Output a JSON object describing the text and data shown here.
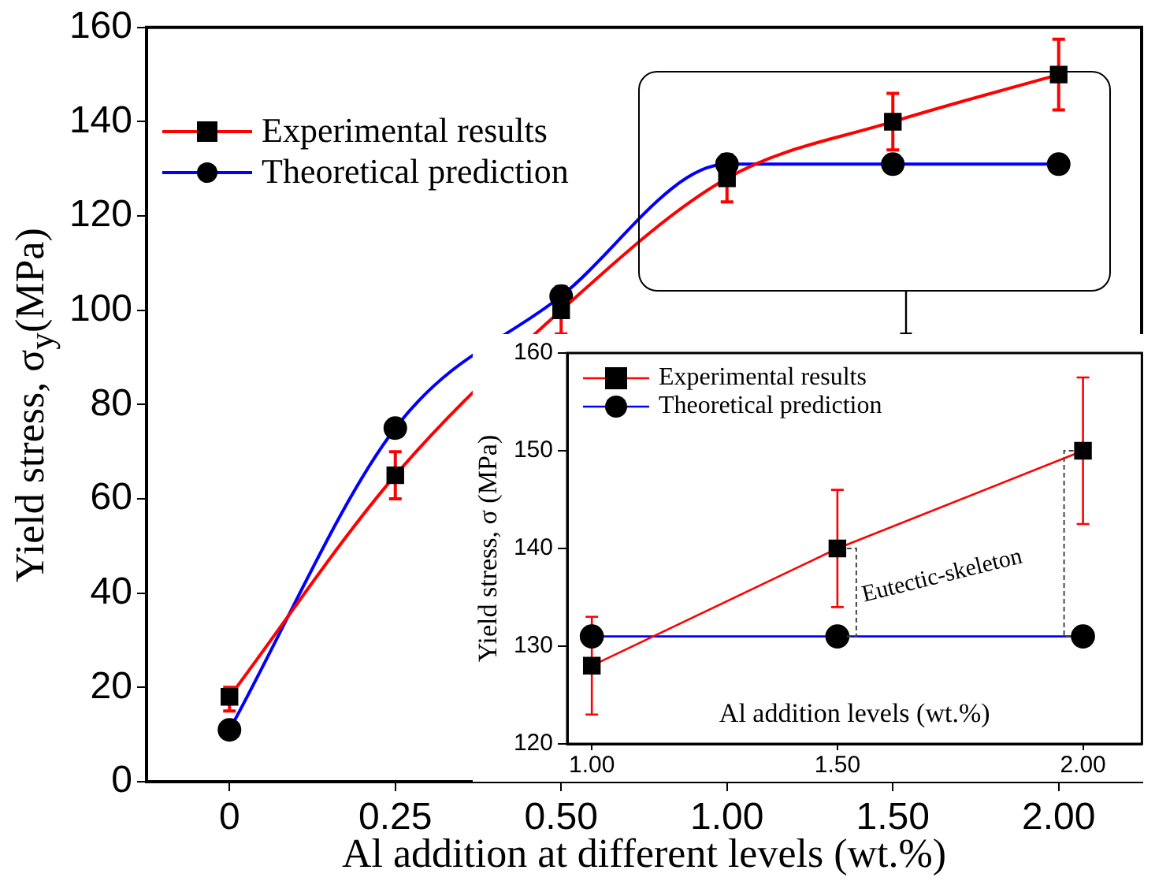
{
  "chart_data": [
    {
      "type": "line",
      "xlabel": "Al addition at different levels (wt.%)",
      "ylabel": "Yield stress, σ$_{y}$(MPa)",
      "categories": [
        "0",
        "0.25",
        "0.50",
        "1.00",
        "1.50",
        "2.00"
      ],
      "ylim": [
        0,
        160
      ],
      "yticks": [
        0,
        20,
        40,
        60,
        80,
        100,
        120,
        140,
        160
      ],
      "series": [
        {
          "name": "Experimental results",
          "color": "#ff0000",
          "marker": "square",
          "values": [
            18,
            65,
            100,
            128,
            140,
            150
          ],
          "errors": [
            [
              15,
              20
            ],
            [
              60,
              70
            ],
            [
              95,
              105
            ],
            [
              123,
              133
            ],
            [
              134,
              146
            ],
            [
              142.5,
              157.5
            ]
          ]
        },
        {
          "name": "Theoretical prediction",
          "color": "#0000ff",
          "marker": "circle",
          "values": [
            11,
            75,
            103,
            131,
            131,
            131
          ]
        }
      ],
      "legend": "top left",
      "grid": false,
      "line_style": "solid"
    },
    {
      "type": "line",
      "ylabel": "Yield stress, σ (MPa)",
      "xlabel": "Al addition levels (wt.%)",
      "x": [
        1.0,
        1.5,
        2.0
      ],
      "xlim": [
        0.95,
        2.12
      ],
      "xticks": [
        {
          "value": 1.0,
          "label": "1.00"
        },
        {
          "value": 1.5,
          "label": "1.50"
        },
        {
          "value": 2.0,
          "label": "2.00"
        }
      ],
      "ylim": [
        120,
        160
      ],
      "yticks": [
        120,
        130,
        140,
        150,
        160
      ],
      "series": [
        {
          "name": "Experimental results",
          "color": "#ff0000",
          "marker": "square",
          "values": [
            128,
            140,
            150
          ],
          "errors": [
            [
              123,
              133
            ],
            [
              134,
              146
            ],
            [
              142.5,
              157.5
            ]
          ]
        },
        {
          "name": "Theoretical prediction",
          "color": "#0000ff",
          "marker": "circle",
          "values": [
            131,
            131,
            131
          ]
        }
      ],
      "annotations": [
        {
          "text": "Eutectic-skeleton",
          "x": 1.5,
          "y": 140
        }
      ],
      "legend": "top left",
      "grid": false,
      "line_style": "solid"
    }
  ]
}
